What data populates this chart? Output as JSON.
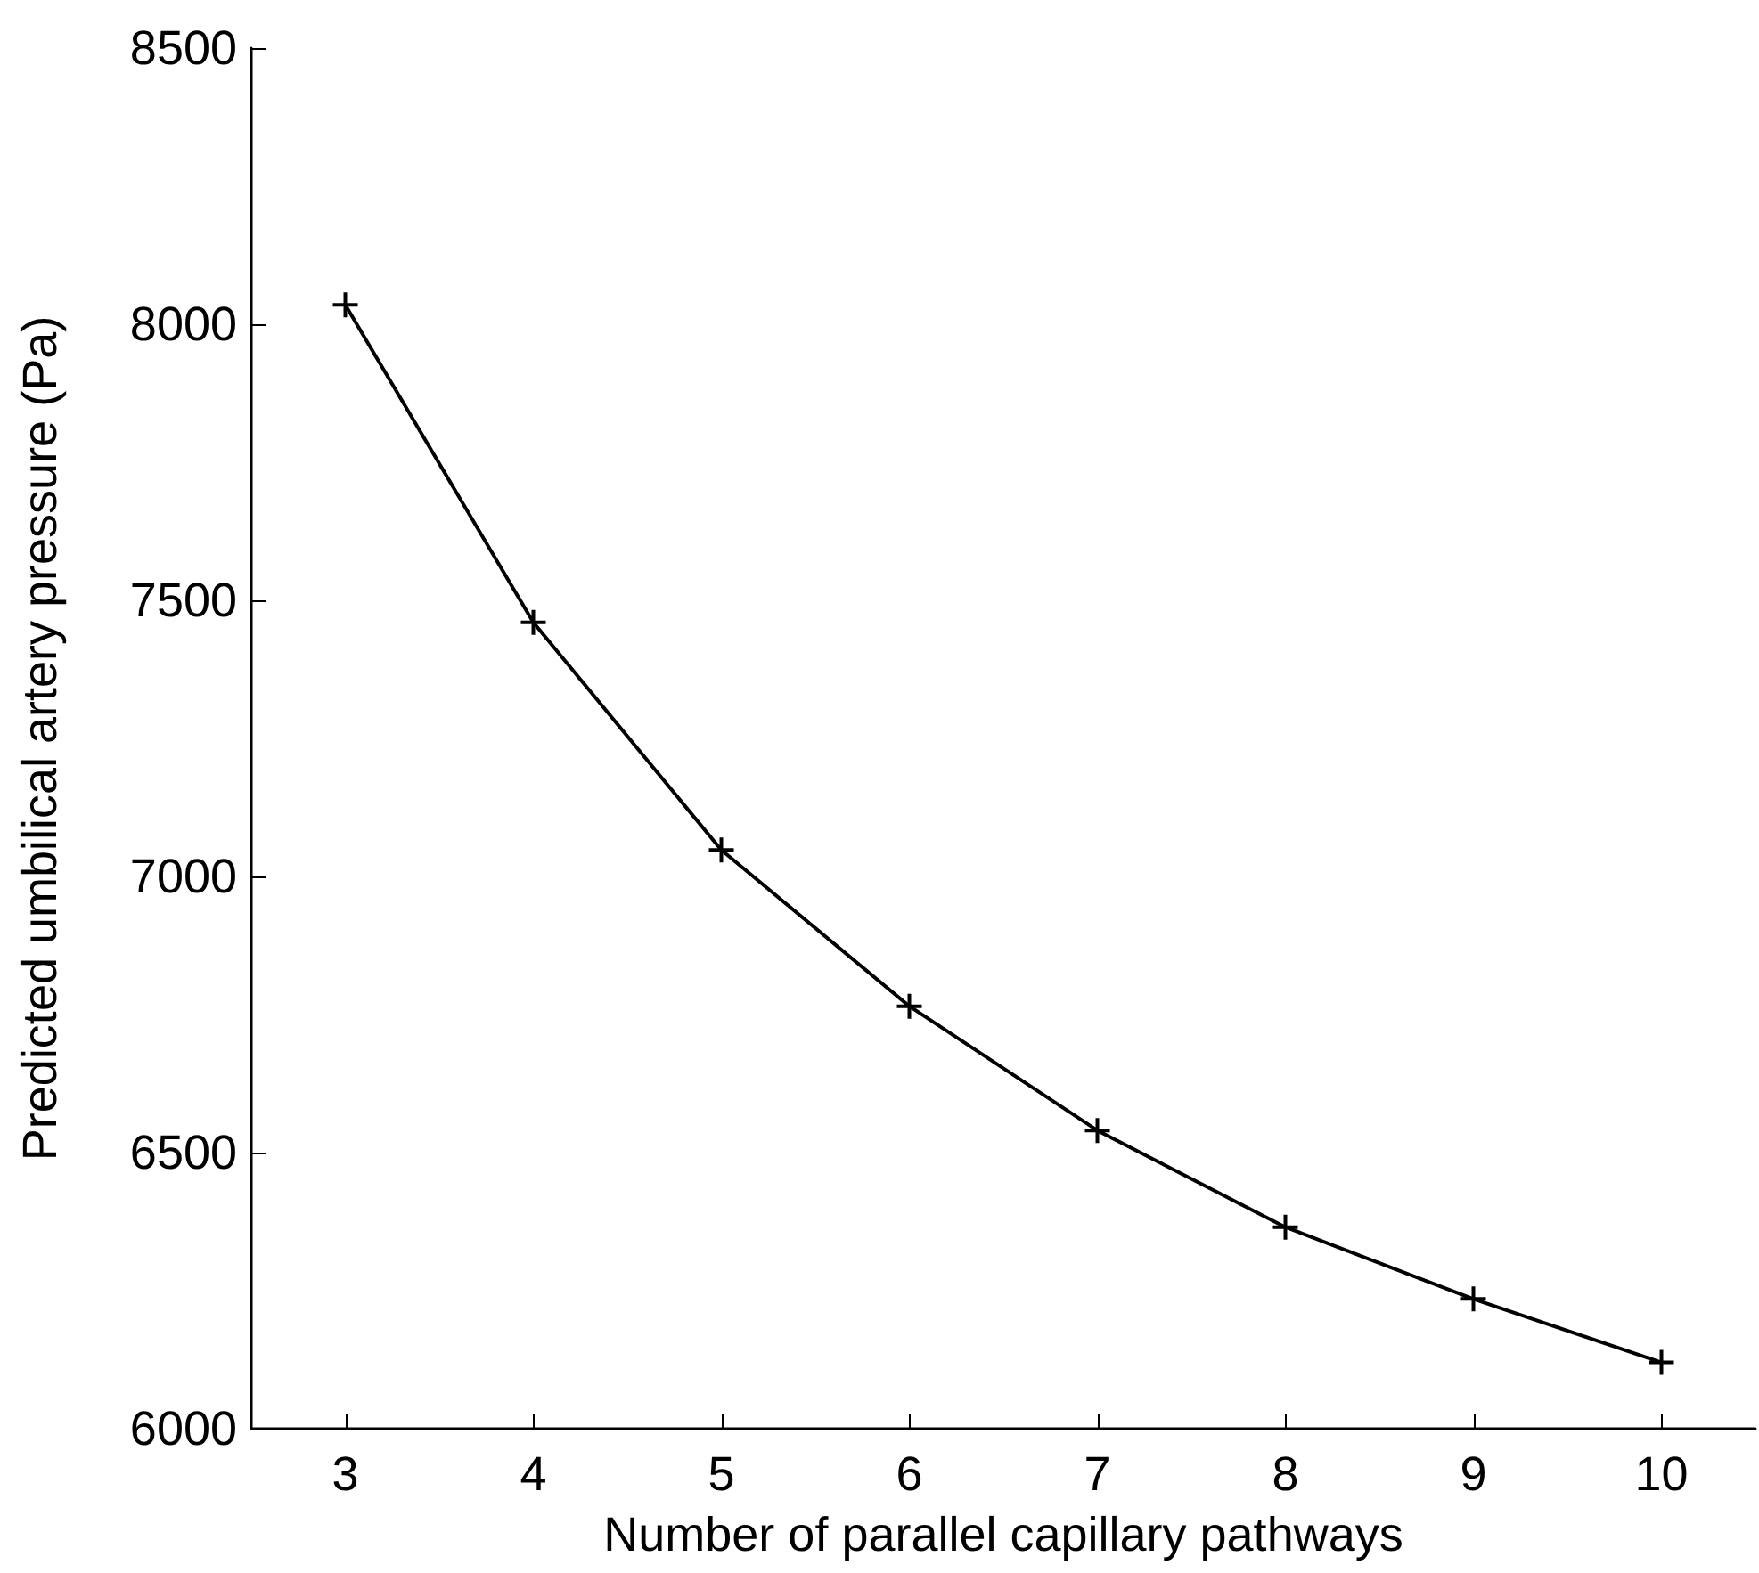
{
  "chart_data": {
    "type": "line",
    "xlabel": "Number of parallel capillary pathways",
    "ylabel": "Predicted umbilical artery pressure (Pa)",
    "x": [
      3,
      4,
      5,
      6,
      7,
      8,
      9,
      10
    ],
    "series": [
      {
        "color": "#000000",
        "values": [
          8035,
          7460,
          7048,
          6765,
          6540,
          6365,
          6235,
          6120
        ]
      }
    ],
    "xlim": [
      2.5,
      10.5
    ],
    "xticks": [
      3,
      4,
      5,
      6,
      7,
      8,
      9,
      10
    ],
    "ylim": [
      6000,
      8500
    ],
    "yticks": [
      6000,
      6500,
      7000,
      7500,
      8000,
      8500
    ],
    "grid": false,
    "marker": "cross",
    "line_style": "solid"
  }
}
